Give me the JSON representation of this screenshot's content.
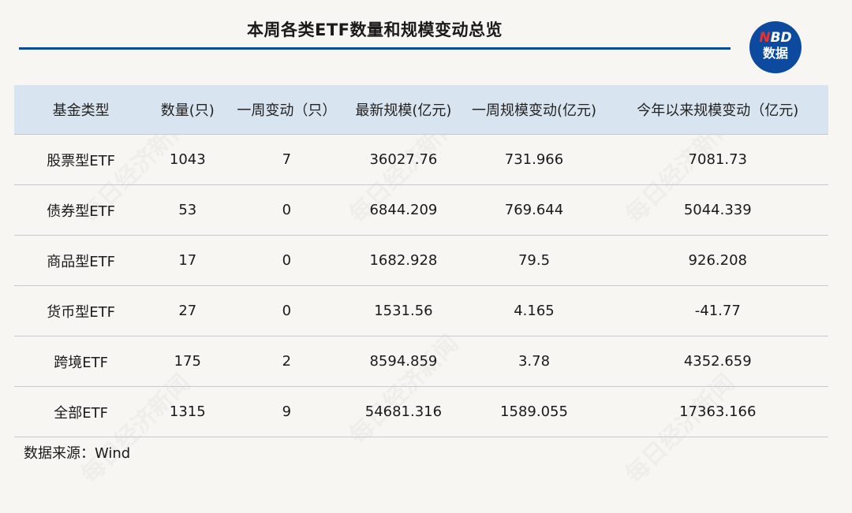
{
  "title": "本周各类ETF数量和规模变动总览",
  "logo": {
    "line1_accent": "N",
    "line1_rest": "BD",
    "line2": "数据"
  },
  "colors": {
    "accent": "#0b4a9e",
    "header_bg": "#d8e4ef",
    "logo_red": "#e8322e"
  },
  "watermark": "每日经济新闻",
  "table": {
    "headers": [
      "基金类型",
      "数量(只)",
      "一周变动（只）",
      "最新规模(亿元)",
      "一周规模变动(亿元)",
      "今年以来规模变动（亿元)"
    ],
    "rows": [
      [
        "股票型ETF",
        "1043",
        "7",
        "36027.76",
        "731.966",
        "7081.73"
      ],
      [
        "债券型ETF",
        "53",
        "0",
        "6844.209",
        "769.644",
        "5044.339"
      ],
      [
        "商品型ETF",
        "17",
        "0",
        "1682.928",
        "79.5",
        "926.208"
      ],
      [
        "货币型ETF",
        "27",
        "0",
        "1531.56",
        "4.165",
        "-41.77"
      ],
      [
        "跨境ETF",
        "175",
        "2",
        "8594.859",
        "3.78",
        "4352.659"
      ],
      [
        "全部ETF",
        "1315",
        "9",
        "54681.316",
        "1589.055",
        "17363.166"
      ]
    ]
  },
  "source": "数据来源：Wind"
}
